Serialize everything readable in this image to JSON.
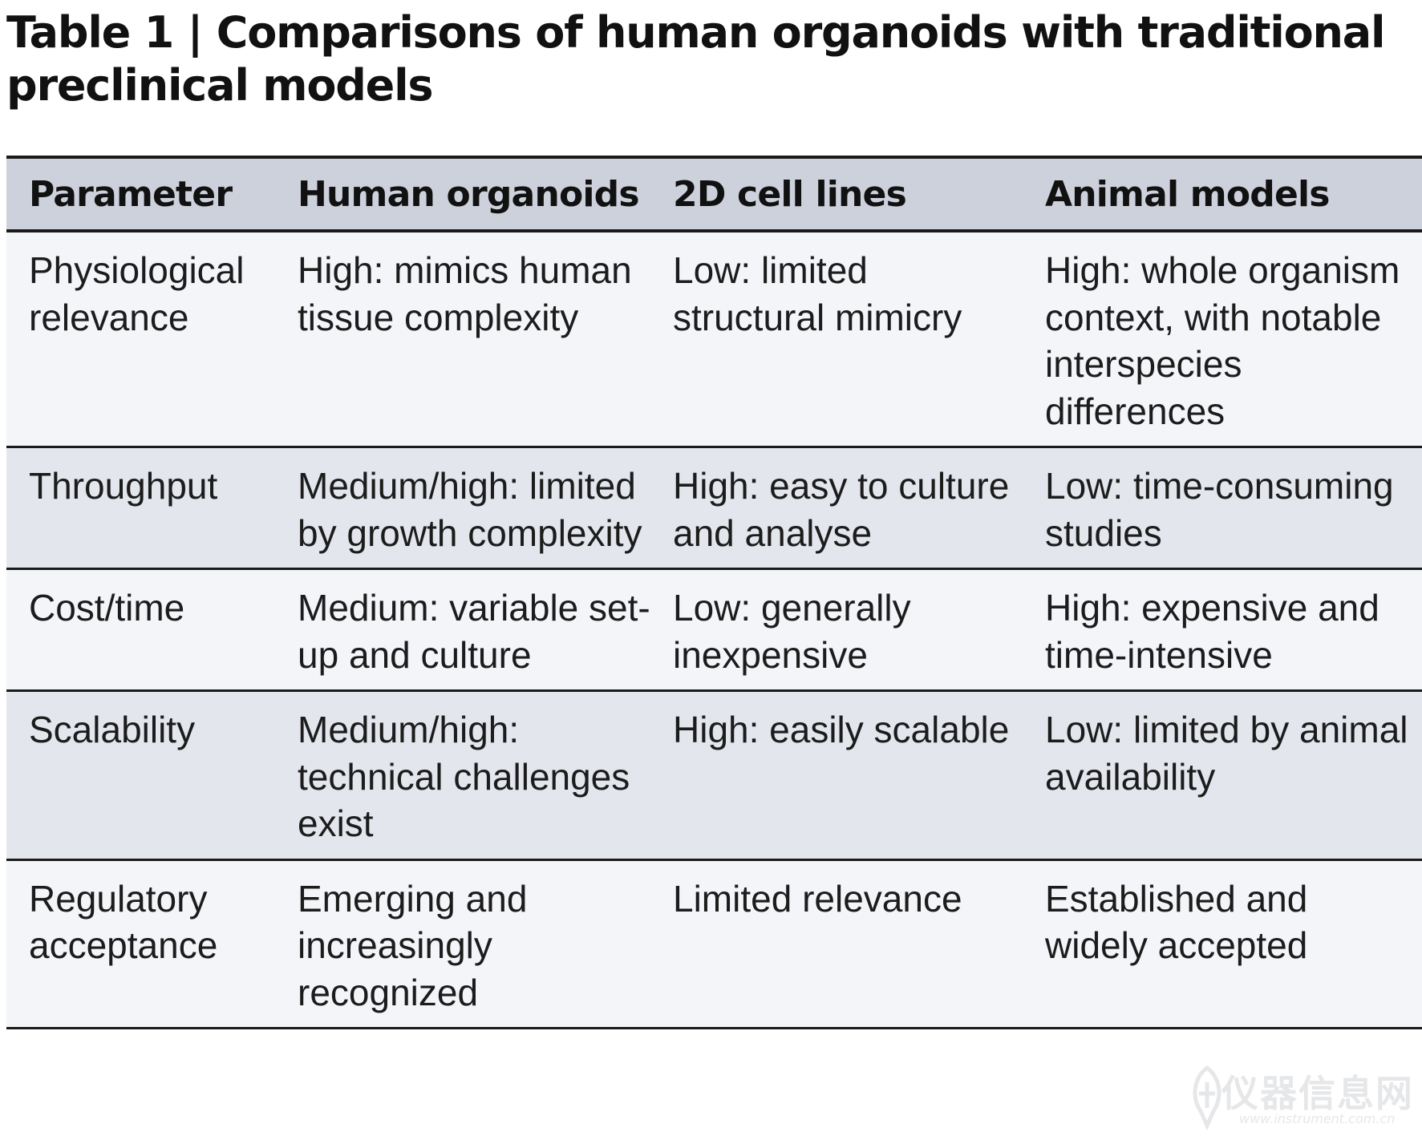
{
  "title": "Table 1 | Comparisons of human organoids with traditional preclinical models",
  "table": {
    "headers": [
      "Parameter",
      "Human organoids",
      "2D cell lines",
      "Animal models"
    ],
    "rows": [
      {
        "parameter": "Physiological relevance",
        "organoids": "High: mimics human tissue complexity",
        "cell_lines": "Low: limited structural mimicry",
        "animal": "High: whole organism context, with notable interspecies differences"
      },
      {
        "parameter": "Throughput",
        "organoids": "Medium/high: limited by growth complexity",
        "cell_lines": "High: easy to culture and analyse",
        "animal": "Low: time-consuming studies"
      },
      {
        "parameter": "Cost/time",
        "organoids": "Medium: variable set-up and culture",
        "cell_lines": "Low: generally inexpensive",
        "animal": "High: expensive and time-intensive"
      },
      {
        "parameter": "Scalability",
        "organoids": "Medium/high: technical challenges exist",
        "cell_lines": "High: easily scalable",
        "animal": "Low: limited by animal availability"
      },
      {
        "parameter": "Regulatory acceptance",
        "organoids": "Emerging and increasingly recognized",
        "cell_lines": "Limited relevance",
        "animal": "Established and widely accepted"
      }
    ]
  },
  "watermark": {
    "text": "仪器信息网",
    "subtext": "www.instrument.com.cn"
  },
  "colors": {
    "header_bg": "#cdd1dc",
    "row_light": "#f4f5f8",
    "row_dark": "#e3e6ed",
    "rule": "#1a1a1a"
  }
}
